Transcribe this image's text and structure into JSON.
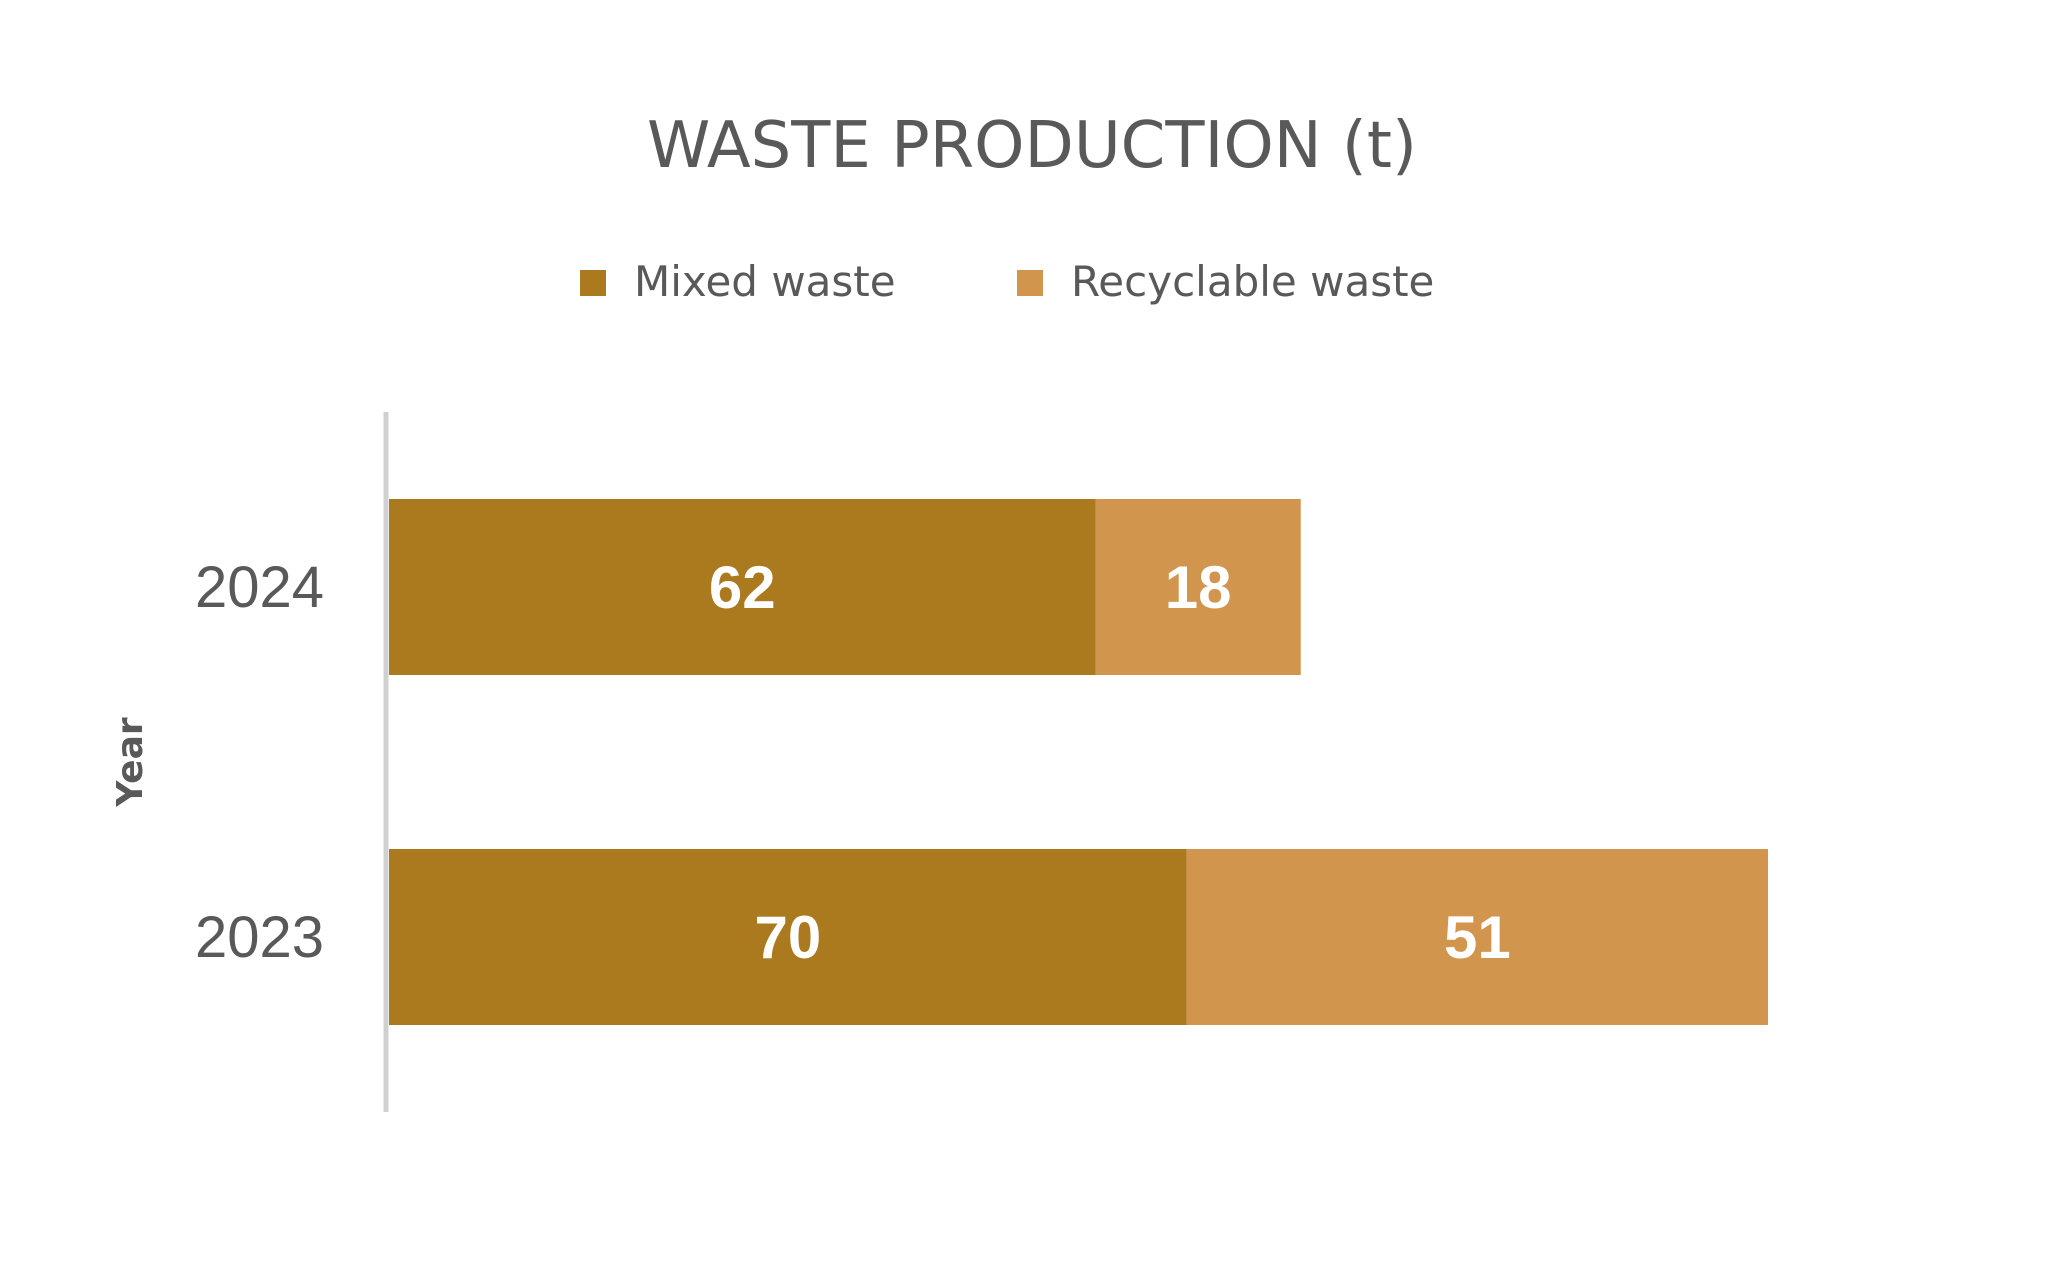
{
  "chart_data": {
    "type": "bar",
    "orientation": "horizontal",
    "stacked": true,
    "title": "WASTE PRODUCTION (t)",
    "ylabel": "Year",
    "xlabel": "",
    "categories": [
      "2024",
      "2023"
    ],
    "series": [
      {
        "name": "Mixed waste",
        "values": [
          62,
          70
        ],
        "color": "#AB7A1F"
      },
      {
        "name": "Recyclable waste",
        "values": [
          18,
          51
        ],
        "color": "#D2954D"
      }
    ],
    "xlim": [
      0,
      125
    ],
    "grid": false,
    "legend_position": "top",
    "data_labels": true
  }
}
